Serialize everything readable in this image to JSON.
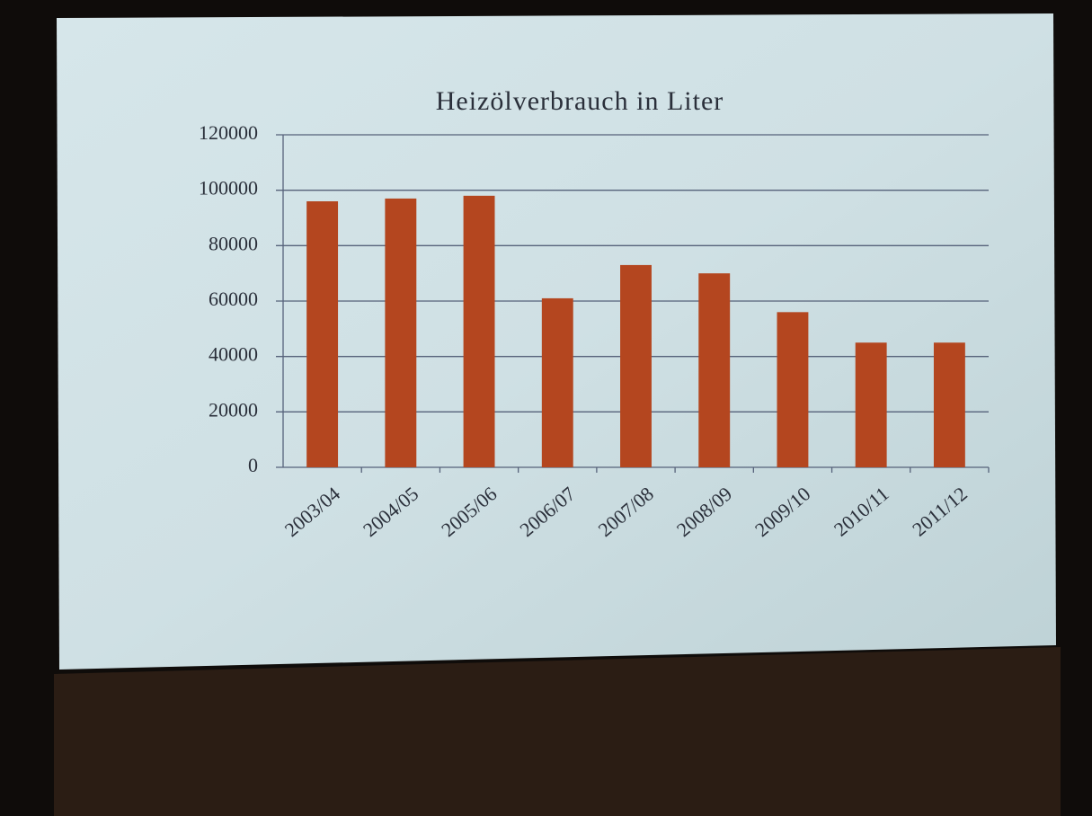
{
  "chart_data": {
    "type": "bar",
    "title": "Heizölverbrauch in Liter",
    "categories": [
      "2003/04",
      "2004/05",
      "2005/06",
      "2006/07",
      "2007/08",
      "2008/09",
      "2009/10",
      "2010/11",
      "2011/12"
    ],
    "values": [
      96000,
      97000,
      98000,
      61000,
      73000,
      70000,
      56000,
      45000,
      45000
    ],
    "color": "#b4461f",
    "ylim": [
      0,
      120000
    ],
    "yticks": [
      0,
      20000,
      40000,
      60000,
      80000,
      100000,
      120000
    ],
    "grid": true
  }
}
